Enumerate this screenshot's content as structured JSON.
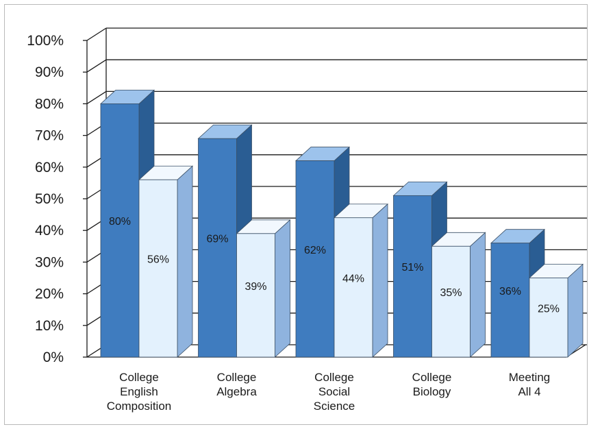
{
  "chart_data": {
    "type": "bar",
    "title": "",
    "xlabel": "",
    "ylabel": "",
    "ylim": [
      0,
      100
    ],
    "y_ticks": [
      "0%",
      "10%",
      "20%",
      "30%",
      "40%",
      "50%",
      "60%",
      "70%",
      "80%",
      "90%",
      "100%"
    ],
    "grid": true,
    "categories": [
      [
        "College",
        "English",
        "Composition"
      ],
      [
        "College",
        "Algebra"
      ],
      [
        "College",
        "Social",
        "Science"
      ],
      [
        "College",
        "Biology"
      ],
      [
        "Meeting",
        "All 4"
      ]
    ],
    "series": [
      {
        "values": [
          80,
          69,
          62,
          51,
          36
        ],
        "labels": [
          "80%",
          "69%",
          "62%",
          "51%",
          "36%"
        ],
        "color": "#3f7cbf",
        "color_top": "#9dc3ec",
        "color_side": "#2a5d93"
      },
      {
        "values": [
          56,
          39,
          44,
          35,
          25
        ],
        "labels": [
          "56%",
          "39%",
          "44%",
          "35%",
          "25%"
        ],
        "color": "#e3f1fd",
        "color_top": "#f2f8fe",
        "color_side": "#8fb3de"
      }
    ]
  }
}
